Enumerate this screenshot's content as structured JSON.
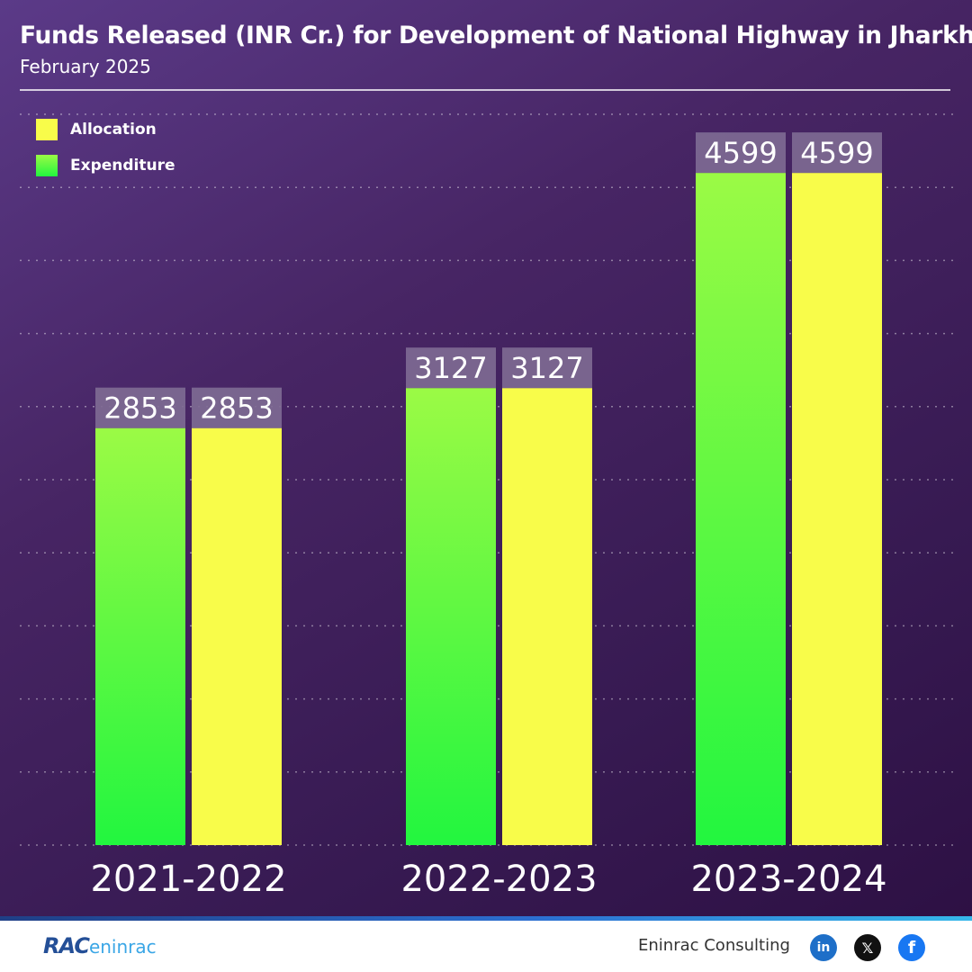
{
  "title": "Funds Released (INR Cr.) for Development of National Highway in Jharkhand",
  "subtitle": "February 2025",
  "legend": [
    {
      "label": "Allocation",
      "color": "#f8fc4a",
      "icon": "allocation-swatch"
    },
    {
      "label": "Expenditure",
      "color": "#33f542",
      "icon": "expenditure-swatch"
    }
  ],
  "chart_data": {
    "type": "bar",
    "categories": [
      "2021-2022",
      "2022-2023",
      "2023-2024"
    ],
    "series": [
      {
        "name": "Expenditure",
        "values": [
          2853,
          3127,
          4599
        ]
      },
      {
        "name": "Allocation",
        "values": [
          2853,
          3127,
          4599
        ]
      }
    ],
    "ylim": [
      0,
      5000
    ],
    "grid": true,
    "legend_position": "top-left",
    "colors": {
      "expenditure_top": "#9bfa45",
      "expenditure_bottom": "#22f63f",
      "allocation": "#f8fc4a",
      "label_box": "#7e6a93"
    }
  },
  "footer": {
    "logo_bold": "RAC",
    "logo_light": "eninrac",
    "company": "Eninrac Consulting",
    "social": [
      {
        "icon": "linkedin-icon",
        "glyph": "in"
      },
      {
        "icon": "x-icon",
        "glyph": "𝕏"
      },
      {
        "icon": "facebook-icon",
        "glyph": "f"
      }
    ]
  }
}
